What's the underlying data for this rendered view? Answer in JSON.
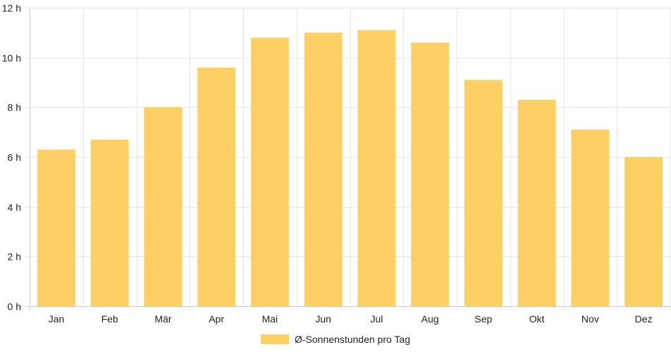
{
  "chart_data": {
    "type": "bar",
    "categories": [
      "Jan",
      "Feb",
      "Mär",
      "Apr",
      "Mai",
      "Jun",
      "Jul",
      "Aug",
      "Sep",
      "Okt",
      "Nov",
      "Dez"
    ],
    "series": [
      {
        "name": "Ø-Sonnenstunden pro Tag",
        "values": [
          6.3,
          6.7,
          8.0,
          9.6,
          10.8,
          11.0,
          11.1,
          10.6,
          9.1,
          8.3,
          7.1,
          6.0
        ],
        "color": "#fdd066"
      }
    ],
    "ylim": [
      0,
      12
    ],
    "yticks": [
      0,
      2,
      4,
      6,
      8,
      10,
      12
    ],
    "ytick_labels": [
      "0 h",
      "2 h",
      "4 h",
      "6 h",
      "8 h",
      "10 h",
      "12 h"
    ],
    "grid": true,
    "legend_position": "bottom-center",
    "title": "",
    "xlabel": "",
    "ylabel": ""
  }
}
